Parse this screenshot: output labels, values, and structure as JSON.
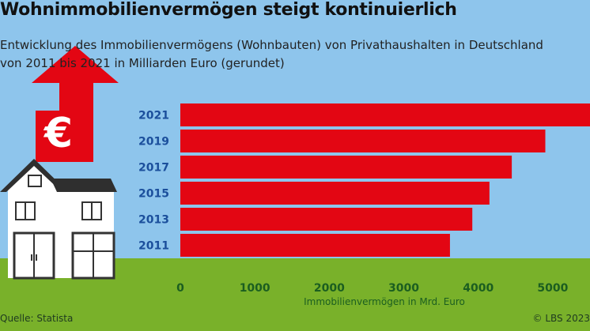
{
  "title": "Wohnimmobilienvermögen steigt kontinuierlich",
  "subtitle_line1": "Entwicklung des Immobilienvermögens (Wohnbauten) von Privathaushalten in Deutschland",
  "subtitle_line2": "von 2011 bis 2021 in Milliarden Euro (gerundet)",
  "source": "Quelle: Statista",
  "credit": "© LBS 2023",
  "colors": {
    "background": "#8ec5ec",
    "bar": "#e30613",
    "ground": "#79b12a",
    "label": "#1b4f9c",
    "tick": "#1b5e20",
    "house_roof": "#2f2f2f",
    "house_wall": "#ffffff"
  },
  "icons": {
    "euro": "€"
  },
  "chart_data": {
    "type": "bar",
    "orientation": "horizontal",
    "title": "Wohnimmobilienvermögen steigt kontinuierlich",
    "xlabel": "Immobilienvermögen in Mrd. Euro",
    "ylabel": "",
    "categories": [
      "2021",
      "2019",
      "2017",
      "2015",
      "2013",
      "2011"
    ],
    "values": [
      5500,
      4900,
      4450,
      4150,
      3920,
      3620
    ],
    "xlim": [
      0,
      5500
    ],
    "xticks": [
      "0",
      "1000",
      "2000",
      "3000",
      "4000",
      "5000"
    ],
    "grid": false,
    "legend": "none"
  }
}
